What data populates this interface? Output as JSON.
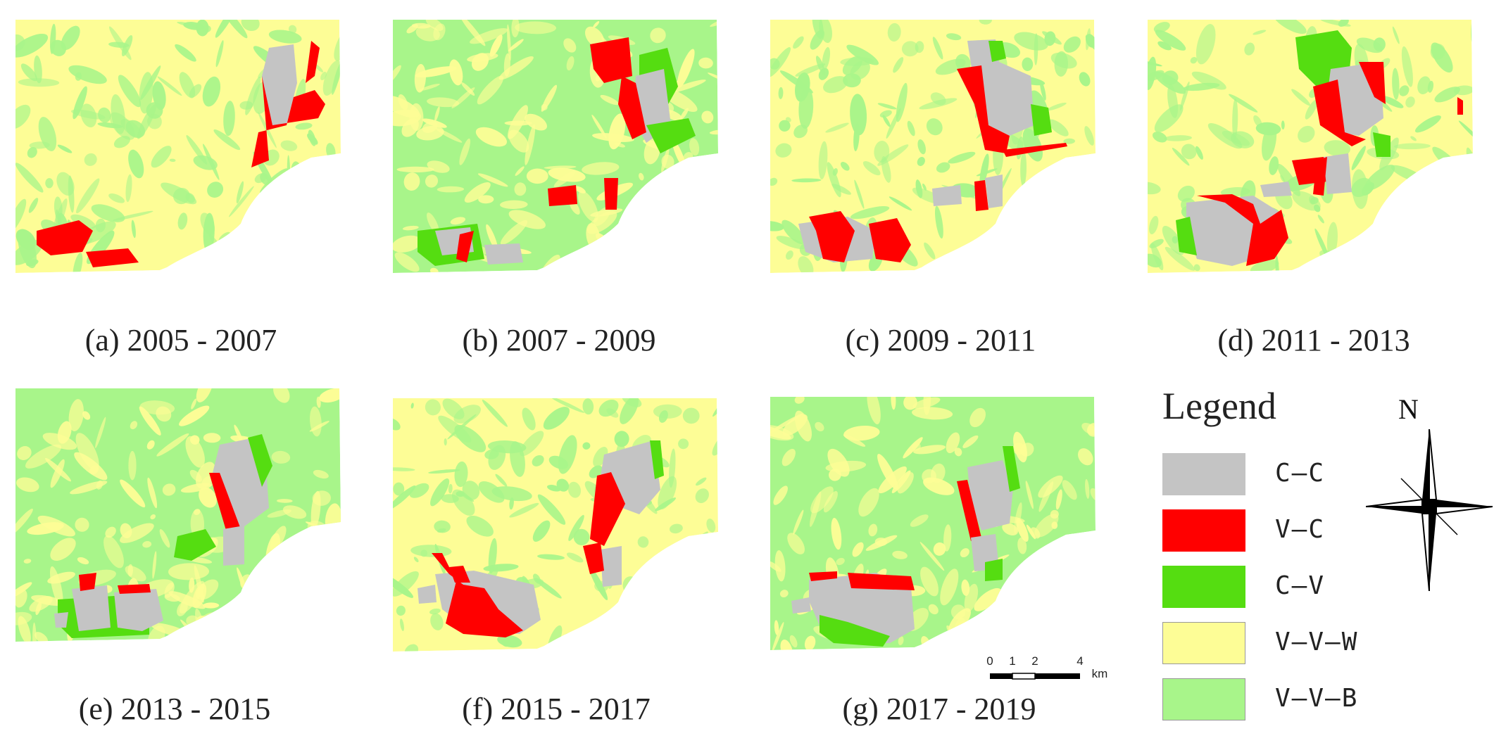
{
  "panels": [
    {
      "id": "a",
      "caption": "(a) 2005 - 2007",
      "base": "#fdfd96",
      "alt": "#a8f58a"
    },
    {
      "id": "b",
      "caption": "(b) 2007 - 2009",
      "base": "#a8f58a",
      "alt": "#fdfd96"
    },
    {
      "id": "c",
      "caption": "(c) 2009 - 2011",
      "base": "#fdfd96",
      "alt": "#a8f58a"
    },
    {
      "id": "d",
      "caption": "(d) 2011 - 2013",
      "base": "#fdfd96",
      "alt": "#a8f58a"
    },
    {
      "id": "e",
      "caption": "(e) 2013 - 2015",
      "base": "#a8f58a",
      "alt": "#fdfd96"
    },
    {
      "id": "f",
      "caption": "(f) 2015 - 2017",
      "base": "#fdfd96",
      "alt": "#a8f58a"
    },
    {
      "id": "g",
      "caption": "(g) 2017 - 2019",
      "base": "#a8f58a",
      "alt": "#fdfd96"
    }
  ],
  "legend": {
    "title": "Legend",
    "items": [
      {
        "label": "C–C",
        "color": "#c4c4c4"
      },
      {
        "label": "V–C",
        "color": "#ff0000"
      },
      {
        "label": "C–V",
        "color": "#55dd11"
      },
      {
        "label": "V–V–W",
        "color": "#fdfd96"
      },
      {
        "label": "V–V–B",
        "color": "#a8f58a"
      }
    ]
  },
  "north_arrow": {
    "label": "N",
    "icon": "compass-rose-icon"
  },
  "scale_bar": {
    "ticks": [
      "0",
      "1",
      "2",
      "4"
    ],
    "unit": "km"
  }
}
